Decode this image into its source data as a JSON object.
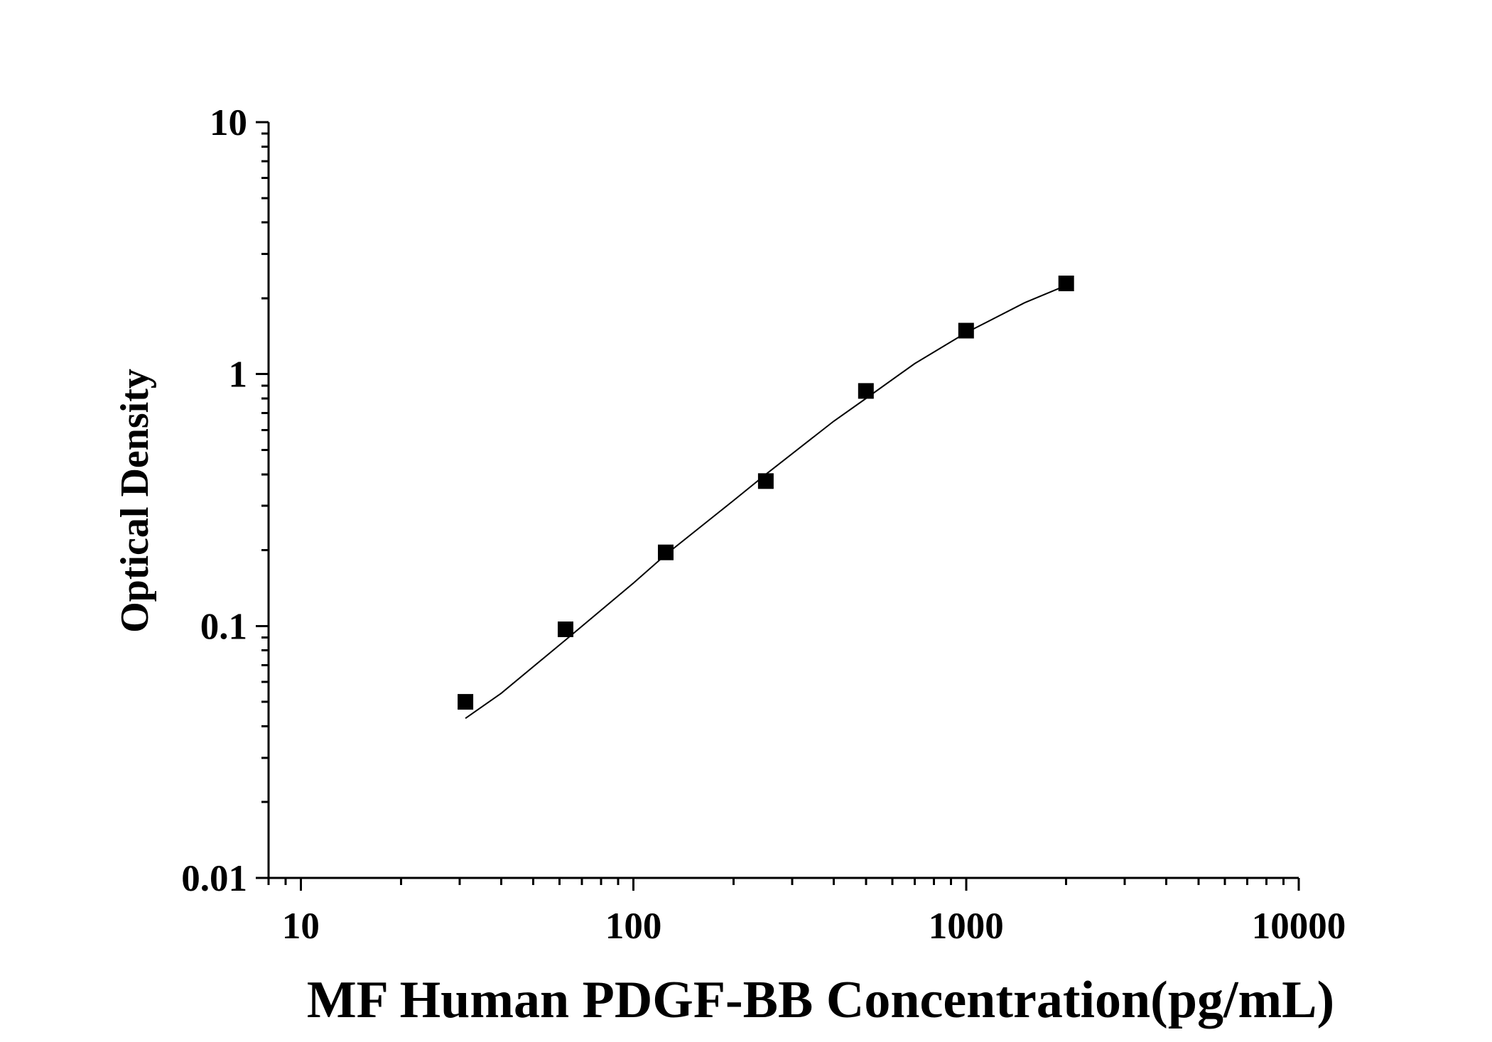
{
  "chart_data": {
    "type": "scatter",
    "title": "",
    "xlabel": "MF Human PDGF-BB Concentration(pg/mL)",
    "ylabel": "Optical Density",
    "xscale": "log",
    "yscale": "log",
    "xlim": [
      8,
      10000
    ],
    "ylim": [
      0.01,
      10
    ],
    "x_ticks": [
      10,
      100,
      1000,
      10000
    ],
    "x_tick_labels": [
      "10",
      "100",
      "1000",
      "10000"
    ],
    "y_ticks": [
      0.01,
      0.1,
      1,
      10
    ],
    "y_tick_labels": [
      "0.01",
      "0.1",
      "1",
      "10"
    ],
    "grid": false,
    "legend": "none",
    "marker": "square",
    "color": "#000000",
    "series": [
      {
        "x": [
          31.25,
          62.5,
          125,
          250,
          500,
          1000,
          2000
        ],
        "y": [
          0.05,
          0.097,
          0.196,
          0.376,
          0.857,
          1.488,
          2.29
        ]
      }
    ],
    "fit_curve": {
      "x": [
        31.25,
        40,
        62.5,
        100,
        125,
        200,
        250,
        400,
        500,
        700,
        1000,
        1500,
        2000
      ],
      "y": [
        0.043,
        0.054,
        0.088,
        0.148,
        0.192,
        0.315,
        0.4,
        0.65,
        0.8,
        1.1,
        1.46,
        1.92,
        2.25
      ]
    }
  }
}
